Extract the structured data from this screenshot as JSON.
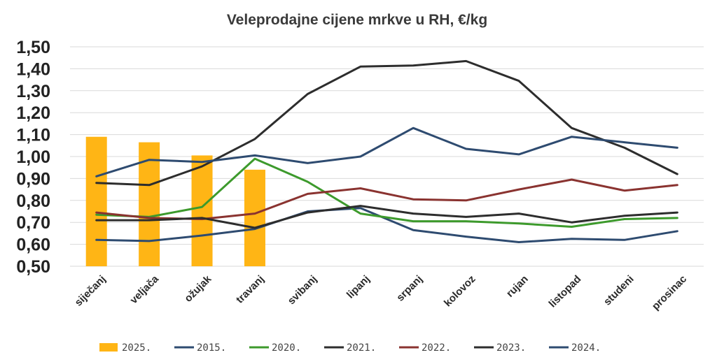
{
  "chart_data": {
    "type": "bar+line",
    "title": "Veleprodajne cijene mrkve u RH, €/kg",
    "xlabel": "",
    "ylabel": "",
    "ylim": [
      0.5,
      1.5
    ],
    "ytick_step": 0.1,
    "ytick_labels": [
      "0,50",
      "0,60",
      "0,70",
      "0,80",
      "0,90",
      "1,00",
      "1,10",
      "1,20",
      "1,30",
      "1,40",
      "1,50"
    ],
    "grid": true,
    "legend_position": "bottom",
    "categories": [
      "siječanj",
      "veljača",
      "ožujak",
      "travanj",
      "svibanj",
      "lipanj",
      "srpanj",
      "kolovoz",
      "rujan",
      "listopad",
      "studeni",
      "prosinac"
    ],
    "bars": {
      "name": "2025.",
      "color": "#ffb515",
      "values": [
        1.09,
        1.065,
        1.005,
        0.94
      ]
    },
    "series": [
      {
        "name": "2015.",
        "color": "#2e4b70",
        "values": [
          0.62,
          0.615,
          0.64,
          0.67,
          0.75,
          0.765,
          0.665,
          0.635,
          0.61,
          0.625,
          0.62,
          0.66
        ]
      },
      {
        "name": "2020.",
        "color": "#3d9a2c",
        "values": [
          0.735,
          0.725,
          0.77,
          0.99,
          0.885,
          0.74,
          0.705,
          0.705,
          0.695,
          0.68,
          0.715,
          0.72
        ]
      },
      {
        "name": "2021.",
        "color": "#2d2d2d",
        "values": [
          0.88,
          0.87,
          0.955,
          1.08,
          1.285,
          1.41,
          1.415,
          1.435,
          1.345,
          1.13,
          1.04,
          0.92
        ]
      },
      {
        "name": "2022.",
        "color": "#8a3330",
        "values": [
          0.745,
          0.72,
          0.715,
          0.74,
          0.83,
          0.855,
          0.805,
          0.8,
          0.85,
          0.895,
          0.845,
          0.87
        ]
      },
      {
        "name": "2023.",
        "color": "#2d2d2d",
        "values": [
          0.71,
          0.71,
          0.72,
          0.675,
          0.745,
          0.775,
          0.74,
          0.725,
          0.74,
          0.7,
          0.73,
          0.745
        ]
      },
      {
        "name": "2024.",
        "color": "#2e4b70",
        "values": [
          0.91,
          0.985,
          0.975,
          1.005,
          0.97,
          1.0,
          1.13,
          1.035,
          1.01,
          1.09,
          1.065,
          1.04
        ]
      }
    ]
  }
}
